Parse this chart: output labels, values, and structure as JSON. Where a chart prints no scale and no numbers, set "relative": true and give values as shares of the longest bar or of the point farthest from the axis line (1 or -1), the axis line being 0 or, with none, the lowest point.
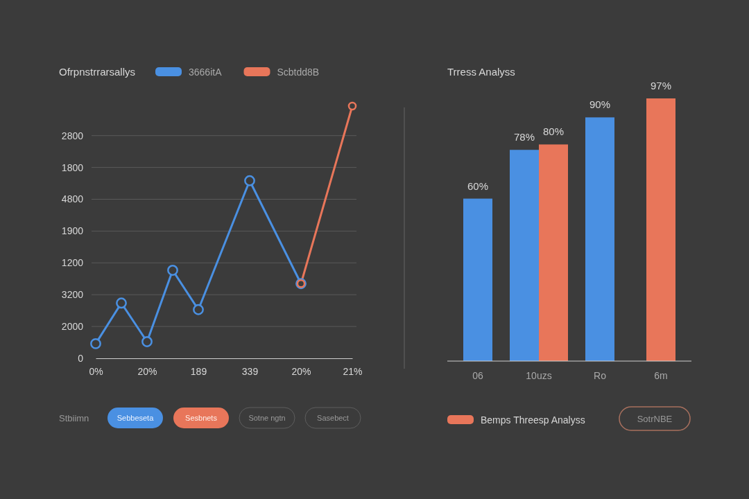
{
  "chart_data": [
    {
      "type": "line",
      "title": "Ofrpnstrrarsallys",
      "legend": "top",
      "grid": "y",
      "marker": "circle",
      "line_style": "solid",
      "relative": true,
      "categories": [
        "0%",
        null,
        "20%",
        null,
        "189",
        null,
        "339",
        null,
        "20%",
        null,
        "21%"
      ],
      "series": [
        {
          "name": "3666itA",
          "color": "#4a90e2",
          "values": [
            0.058,
            0.219,
            0.066,
            0.349,
            0.193,
            null,
            0.704,
            null,
            0.296,
            null,
            null
          ]
        },
        {
          "name": "Scbtdd8B",
          "color": "#e8765a",
          "values": [
            null,
            null,
            null,
            null,
            null,
            null,
            null,
            null,
            0.296,
            null,
            1
          ]
        }
      ],
      "annotations": [
        "Stbiimn",
        "Sebbeseta",
        "Sesbnets",
        "Sotne ngtn",
        "Sasebect",
        "0",
        "2000",
        "3200",
        "1200",
        "1900",
        "4800",
        "1800",
        "2800"
      ]
    },
    {
      "type": "bar",
      "title": "Trress Analyss",
      "legend": "bottom",
      "categories": [
        "06",
        "10uzs",
        "Ro",
        "6m"
      ],
      "series": [
        {
          "color": "#4a90e2",
          "values": [
            60,
            78,
            90,
            null
          ],
          "value_labels": [
            "60%",
            "78%",
            "90%",
            null
          ]
        },
        {
          "name": "Bemps Threesp Analyss",
          "color": "#e8765a",
          "values": [
            null,
            80,
            null,
            97
          ],
          "value_labels": [
            null,
            "80%",
            null,
            "97%"
          ]
        }
      ],
      "annotations": [
        "SotrNBE"
      ]
    }
  ]
}
